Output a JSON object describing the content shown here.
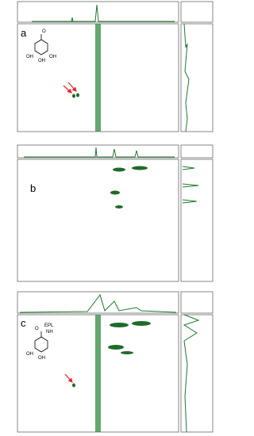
{
  "panels": [
    {
      "label": "a",
      "structure_labels": [
        "O",
        "OH",
        "OH",
        "OH"
      ]
    },
    {
      "label": "b"
    },
    {
      "label": "c",
      "structure_labels": [
        "O",
        "EPL",
        "NH",
        "OH",
        "OH"
      ]
    }
  ]
}
